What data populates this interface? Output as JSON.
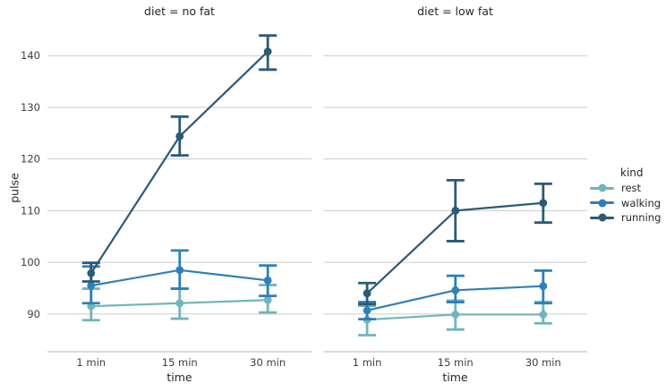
{
  "chart_data": {
    "type": "line",
    "chart_kind": "faceted-point-plot-with-error-bars",
    "categories": [
      "1 min",
      "15 min",
      "30 min"
    ],
    "xlabel": "time",
    "ylabel": "pulse",
    "ylim": [
      82.7,
      146.1
    ],
    "yticks": [
      90,
      100,
      110,
      120,
      130,
      140
    ],
    "grid": true,
    "legend": {
      "title": "kind",
      "position": "right",
      "entries": [
        {
          "label": "rest"
        },
        {
          "label": "walking"
        },
        {
          "label": "running"
        }
      ]
    },
    "colors": {
      "rest": "#71b4ba",
      "walking": "#2e7fba",
      "running": "#2b5a77",
      "grid": "#cccccc",
      "spine": "#c3c3c3",
      "text": "#262626",
      "tick_text": "#3d3d3d",
      "background": "#ffffff"
    },
    "panels": [
      {
        "title": "diet = no fat",
        "series": [
          {
            "name": "rest",
            "values": [
              91.5,
              92.1,
              92.7
            ],
            "ci_low": [
              88.8,
              89.1,
              90.3
            ],
            "ci_high": [
              94.9,
              94.9,
              95.6
            ]
          },
          {
            "name": "walking",
            "values": [
              95.5,
              98.5,
              96.5
            ],
            "ci_low": [
              92.1,
              94.9,
              93.5
            ],
            "ci_high": [
              99.2,
              102.3,
              99.4
            ]
          },
          {
            "name": "running",
            "values": [
              97.9,
              124.4,
              140.8
            ],
            "ci_low": [
              96.3,
              120.7,
              137.3
            ],
            "ci_high": [
              99.9,
              128.2,
              143.9
            ]
          }
        ]
      },
      {
        "title": "diet = low fat",
        "series": [
          {
            "name": "rest",
            "values": [
              88.9,
              89.9,
              89.9
            ],
            "ci_low": [
              85.9,
              87.0,
              88.2
            ],
            "ci_high": [
              91.6,
              92.6,
              92.3
            ]
          },
          {
            "name": "walking",
            "values": [
              90.7,
              94.6,
              95.4
            ],
            "ci_low": [
              89.0,
              92.3,
              92.1
            ],
            "ci_high": [
              92.3,
              97.4,
              98.4
            ]
          },
          {
            "name": "running",
            "values": [
              94.0,
              110.0,
              111.5
            ],
            "ci_low": [
              91.9,
              104.1,
              107.7
            ],
            "ci_high": [
              96.0,
              115.9,
              115.2
            ]
          }
        ]
      }
    ]
  }
}
